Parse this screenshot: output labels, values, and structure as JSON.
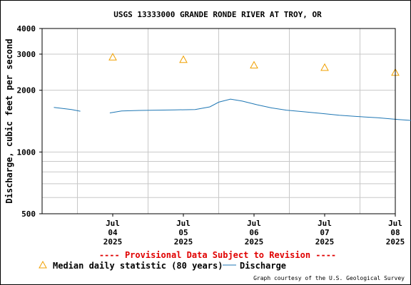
{
  "chart_data": {
    "type": "line",
    "title": "USGS 13333000 GRANDE RONDE RIVER AT TROY, OR",
    "ylabel": "Discharge, cubic feet per second",
    "xlabel": "",
    "y_scale": "log",
    "ylim": [
      500,
      4000
    ],
    "y_ticks": [
      {
        "value": 500,
        "label": "500"
      },
      {
        "value": 1000,
        "label": "1000"
      },
      {
        "value": 2000,
        "label": "2000"
      },
      {
        "value": 3000,
        "label": "3000"
      },
      {
        "value": 4000,
        "label": "4000"
      }
    ],
    "y_minor_gridlines": [
      600,
      700,
      800,
      900
    ],
    "xlim": [
      "2025-07-03T12:00",
      "2025-07-08T12:00"
    ],
    "x_ticks": [
      {
        "date": "2025-07-04T12:00",
        "month": "Jul",
        "day": "04",
        "year": "2025"
      },
      {
        "date": "2025-07-05T12:00",
        "month": "Jul",
        "day": "05",
        "year": "2025"
      },
      {
        "date": "2025-07-06T12:00",
        "month": "Jul",
        "day": "06",
        "year": "2025"
      },
      {
        "date": "2025-07-07T12:00",
        "month": "Jul",
        "day": "07",
        "year": "2025"
      },
      {
        "date": "2025-07-08T12:00",
        "month": "Jul",
        "day": "08",
        "year": "2025"
      }
    ],
    "grid": true,
    "series": [
      {
        "name": "Median daily statistic (80 years)",
        "marker": "triangle",
        "color": "#f0a000",
        "points": [
          {
            "x": "2025-07-04T12:00",
            "y": 2900
          },
          {
            "x": "2025-07-05T12:00",
            "y": 2820
          },
          {
            "x": "2025-07-06T12:00",
            "y": 2650
          },
          {
            "x": "2025-07-07T12:00",
            "y": 2580
          },
          {
            "x": "2025-07-08T12:00",
            "y": 2440
          }
        ]
      },
      {
        "name": "Discharge",
        "color": "#1f77b4",
        "segments": [
          [
            {
              "x": "2025-07-03T16:00",
              "y": 1650
            },
            {
              "x": "2025-07-03T19:00",
              "y": 1630
            },
            {
              "x": "2025-07-03T22:00",
              "y": 1610
            },
            {
              "x": "2025-07-04T01:00",
              "y": 1580
            }
          ],
          [
            {
              "x": "2025-07-04T11:00",
              "y": 1550
            },
            {
              "x": "2025-07-04T15:00",
              "y": 1585
            },
            {
              "x": "2025-07-04T21:00",
              "y": 1595
            },
            {
              "x": "2025-07-05T03:00",
              "y": 1600
            },
            {
              "x": "2025-07-05T09:00",
              "y": 1605
            },
            {
              "x": "2025-07-05T16:00",
              "y": 1610
            },
            {
              "x": "2025-07-05T21:00",
              "y": 1660
            },
            {
              "x": "2025-07-06T00:00",
              "y": 1750
            },
            {
              "x": "2025-07-06T04:00",
              "y": 1810
            },
            {
              "x": "2025-07-06T08:00",
              "y": 1770
            },
            {
              "x": "2025-07-06T13:00",
              "y": 1700
            },
            {
              "x": "2025-07-06T18:00",
              "y": 1640
            },
            {
              "x": "2025-07-06T23:00",
              "y": 1600
            },
            {
              "x": "2025-07-07T05:00",
              "y": 1570
            },
            {
              "x": "2025-07-07T11:00",
              "y": 1540
            },
            {
              "x": "2025-07-07T17:00",
              "y": 1510
            },
            {
              "x": "2025-07-07T23:00",
              "y": 1490
            },
            {
              "x": "2025-07-08T06:00",
              "y": 1470
            },
            {
              "x": "2025-07-08T13:00",
              "y": 1440
            },
            {
              "x": "2025-07-08T19:00",
              "y": 1420
            },
            {
              "x": "2025-07-09T02:00",
              "y": 1390
            },
            {
              "x": "2025-07-09T10:00",
              "y": 1350
            },
            {
              "x": "2025-07-09T18:00",
              "y": 1320
            },
            {
              "x": "2025-07-10T02:00",
              "y": 1310
            },
            {
              "x": "2025-07-10T11:00",
              "y": 1320
            },
            {
              "x": "2025-07-10T20:00",
              "y": 1330
            },
            {
              "x": "2025-07-11T04:00",
              "y": 1320
            },
            {
              "x": "2025-07-11T12:00",
              "y": 1300
            },
            {
              "x": "2025-07-11T20:00",
              "y": 1270
            },
            {
              "x": "2025-07-12T04:00",
              "y": 1240
            },
            {
              "x": "2025-07-12T11:00",
              "y": 1220
            },
            {
              "x": "2025-07-12T14:00",
              "y": 1210
            }
          ]
        ]
      }
    ],
    "annotations": [
      {
        "text": "---- Provisional Data Subject to Revision ----",
        "color": "#e00000"
      }
    ],
    "legend_placement": "bottom"
  },
  "credit": "Graph courtesy of the U.S. Geological Survey",
  "colors": {
    "grid": "#c8c8c8",
    "frame": "#000000",
    "discharge": "#1f77b4",
    "median": "#f0a000",
    "provisional": "#e00000"
  }
}
